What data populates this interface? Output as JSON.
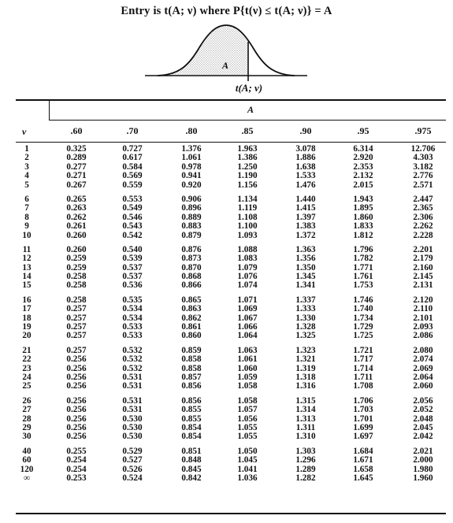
{
  "title": "Entry is t(A; ν) where P{t(ν) ≤ t(A; ν)} = A",
  "figure": {
    "area_label": "A",
    "axis_label": "t(A; ν)"
  },
  "table": {
    "group_header": "A",
    "row_header": "ν",
    "columns": [
      ".60",
      ".70",
      ".80",
      ".85",
      ".90",
      ".95",
      ".975"
    ],
    "groups": [
      [
        {
          "nu": "1",
          "values": [
            "0.325",
            "0.727",
            "1.376",
            "1.963",
            "3.078",
            "6.314",
            "12.706"
          ]
        },
        {
          "nu": "2",
          "values": [
            "0.289",
            "0.617",
            "1.061",
            "1.386",
            "1.886",
            "2.920",
            "4.303"
          ]
        },
        {
          "nu": "3",
          "values": [
            "0.277",
            "0.584",
            "0.978",
            "1.250",
            "1.638",
            "2.353",
            "3.182"
          ]
        },
        {
          "nu": "4",
          "values": [
            "0.271",
            "0.569",
            "0.941",
            "1.190",
            "1.533",
            "2.132",
            "2.776"
          ]
        },
        {
          "nu": "5",
          "values": [
            "0.267",
            "0.559",
            "0.920",
            "1.156",
            "1.476",
            "2.015",
            "2.571"
          ]
        }
      ],
      [
        {
          "nu": "6",
          "values": [
            "0.265",
            "0.553",
            "0.906",
            "1.134",
            "1.440",
            "1.943",
            "2.447"
          ]
        },
        {
          "nu": "7",
          "values": [
            "0.263",
            "0.549",
            "0.896",
            "1.119",
            "1.415",
            "1.895",
            "2.365"
          ]
        },
        {
          "nu": "8",
          "values": [
            "0.262",
            "0.546",
            "0.889",
            "1.108",
            "1.397",
            "1.860",
            "2.306"
          ]
        },
        {
          "nu": "9",
          "values": [
            "0.261",
            "0.543",
            "0.883",
            "1.100",
            "1.383",
            "1.833",
            "2.262"
          ]
        },
        {
          "nu": "10",
          "values": [
            "0.260",
            "0.542",
            "0.879",
            "1.093",
            "1.372",
            "1.812",
            "2.228"
          ]
        }
      ],
      [
        {
          "nu": "11",
          "values": [
            "0.260",
            "0.540",
            "0.876",
            "1.088",
            "1.363",
            "1.796",
            "2.201"
          ]
        },
        {
          "nu": "12",
          "values": [
            "0.259",
            "0.539",
            "0.873",
            "1.083",
            "1.356",
            "1.782",
            "2.179"
          ]
        },
        {
          "nu": "13",
          "values": [
            "0.259",
            "0.537",
            "0.870",
            "1.079",
            "1.350",
            "1.771",
            "2.160"
          ]
        },
        {
          "nu": "14",
          "values": [
            "0.258",
            "0.537",
            "0.868",
            "1.076",
            "1.345",
            "1.761",
            "2.145"
          ]
        },
        {
          "nu": "15",
          "values": [
            "0.258",
            "0.536",
            "0.866",
            "1.074",
            "1.341",
            "1.753",
            "2.131"
          ]
        }
      ],
      [
        {
          "nu": "16",
          "values": [
            "0.258",
            "0.535",
            "0.865",
            "1.071",
            "1.337",
            "1.746",
            "2.120"
          ]
        },
        {
          "nu": "17",
          "values": [
            "0.257",
            "0.534",
            "0.863",
            "1.069",
            "1.333",
            "1.740",
            "2.110"
          ]
        },
        {
          "nu": "18",
          "values": [
            "0.257",
            "0.534",
            "0.862",
            "1.067",
            "1.330",
            "1.734",
            "2.101"
          ]
        },
        {
          "nu": "19",
          "values": [
            "0.257",
            "0.533",
            "0.861",
            "1.066",
            "1.328",
            "1.729",
            "2.093"
          ]
        },
        {
          "nu": "20",
          "values": [
            "0.257",
            "0.533",
            "0.860",
            "1.064",
            "1.325",
            "1.725",
            "2.086"
          ]
        }
      ],
      [
        {
          "nu": "21",
          "values": [
            "0.257",
            "0.532",
            "0.859",
            "1.063",
            "1.323",
            "1.721",
            "2.080"
          ]
        },
        {
          "nu": "22",
          "values": [
            "0.256",
            "0.532",
            "0.858",
            "1.061",
            "1.321",
            "1.717",
            "2.074"
          ]
        },
        {
          "nu": "23",
          "values": [
            "0.256",
            "0.532",
            "0.858",
            "1.060",
            "1.319",
            "1.714",
            "2.069"
          ]
        },
        {
          "nu": "24",
          "values": [
            "0.256",
            "0.531",
            "0.857",
            "1.059",
            "1.318",
            "1.711",
            "2.064"
          ]
        },
        {
          "nu": "25",
          "values": [
            "0.256",
            "0.531",
            "0.856",
            "1.058",
            "1.316",
            "1.708",
            "2.060"
          ]
        }
      ],
      [
        {
          "nu": "26",
          "values": [
            "0.256",
            "0.531",
            "0.856",
            "1.058",
            "1.315",
            "1.706",
            "2.056"
          ]
        },
        {
          "nu": "27",
          "values": [
            "0.256",
            "0.531",
            "0.855",
            "1.057",
            "1.314",
            "1.703",
            "2.052"
          ]
        },
        {
          "nu": "28",
          "values": [
            "0.256",
            "0.530",
            "0.855",
            "1.056",
            "1.313",
            "1.701",
            "2.048"
          ]
        },
        {
          "nu": "29",
          "values": [
            "0.256",
            "0.530",
            "0.854",
            "1.055",
            "1.311",
            "1.699",
            "2.045"
          ]
        },
        {
          "nu": "30",
          "values": [
            "0.256",
            "0.530",
            "0.854",
            "1.055",
            "1.310",
            "1.697",
            "2.042"
          ]
        }
      ],
      [
        {
          "nu": "40",
          "values": [
            "0.255",
            "0.529",
            "0.851",
            "1.050",
            "1.303",
            "1.684",
            "2.021"
          ]
        },
        {
          "nu": "60",
          "values": [
            "0.254",
            "0.527",
            "0.848",
            "1.045",
            "1.296",
            "1.671",
            "2.000"
          ]
        },
        {
          "nu": "120",
          "values": [
            "0.254",
            "0.526",
            "0.845",
            "1.041",
            "1.289",
            "1.658",
            "1.980"
          ]
        },
        {
          "nu": "∞",
          "values": [
            "0.253",
            "0.524",
            "0.842",
            "1.036",
            "1.282",
            "1.645",
            "1.960"
          ]
        }
      ]
    ]
  }
}
